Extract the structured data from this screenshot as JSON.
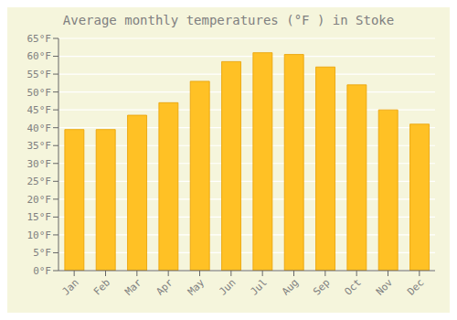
{
  "chart_data": {
    "type": "bar",
    "title": "Average monthly temperatures (°F ) in Stoke",
    "categories": [
      "Jan",
      "Feb",
      "Mar",
      "Apr",
      "May",
      "Jun",
      "Jul",
      "Aug",
      "Sep",
      "Oct",
      "Nov",
      "Dec"
    ],
    "values": [
      39.5,
      39.5,
      43.5,
      47,
      53,
      58.5,
      61,
      60.5,
      57,
      52,
      45,
      41
    ],
    "color": "#FFC125",
    "ylim": [
      0,
      65
    ],
    "yticks": [
      {
        "value": 0,
        "label": "0°F"
      },
      {
        "value": 5,
        "label": "5°F"
      },
      {
        "value": 10,
        "label": "10°F"
      },
      {
        "value": 15,
        "label": "15°F"
      },
      {
        "value": 20,
        "label": "20°F"
      },
      {
        "value": 25,
        "label": "25°F"
      },
      {
        "value": 30,
        "label": "30°F"
      },
      {
        "value": 35,
        "label": "35°F"
      },
      {
        "value": 40,
        "label": "40°F"
      },
      {
        "value": 45,
        "label": "45°F"
      },
      {
        "value": 50,
        "label": "50°F"
      },
      {
        "value": 55,
        "label": "55°F"
      },
      {
        "value": 60,
        "label": "60°F"
      },
      {
        "value": 65,
        "label": "65°F"
      }
    ],
    "grid": true
  }
}
